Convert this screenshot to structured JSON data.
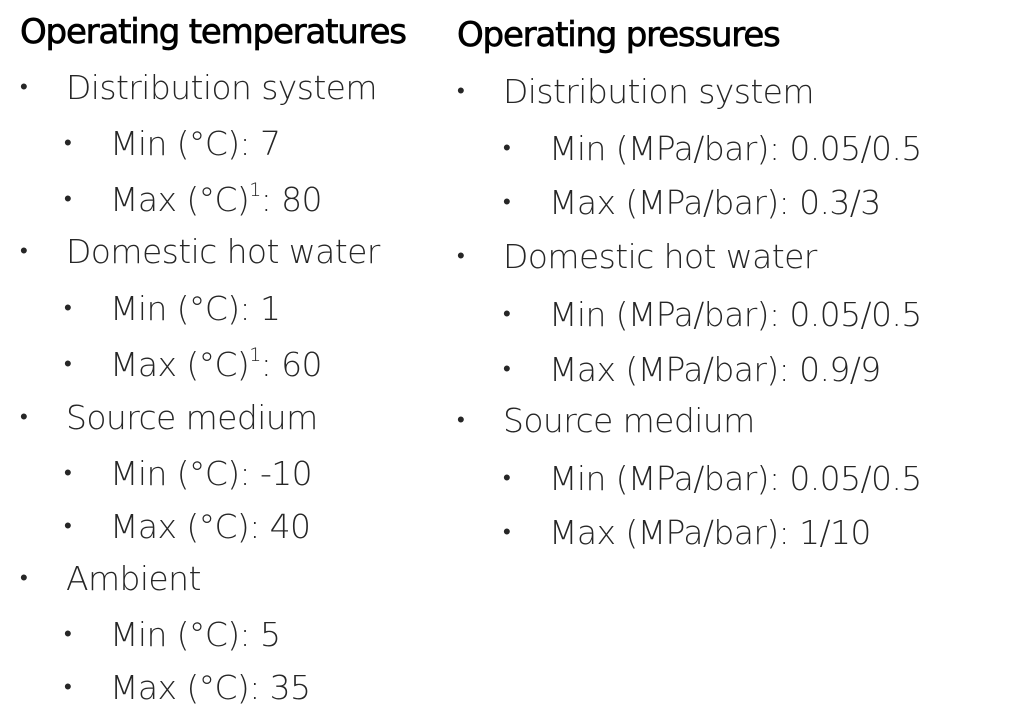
{
  "operating_temperatures": {
    "title": "Operating temperatures",
    "groups": [
      {
        "name": "Distribution system",
        "items": [
          {
            "label": "Min (°C)",
            "sup": "",
            "value": "7"
          },
          {
            "label": "Max (°C)",
            "sup": "1",
            "value": "80"
          }
        ]
      },
      {
        "name": "Domestic hot water",
        "items": [
          {
            "label": "Min (°C)",
            "sup": "",
            "value": "1"
          },
          {
            "label": "Max (°C)",
            "sup": "1",
            "value": "60"
          }
        ]
      },
      {
        "name": "Source medium",
        "items": [
          {
            "label": "Min (°C)",
            "sup": "",
            "value": "-10"
          },
          {
            "label": "Max (°C)",
            "sup": "",
            "value": "40"
          }
        ]
      },
      {
        "name": "Ambient",
        "items": [
          {
            "label": "Min (°C)",
            "sup": "",
            "value": "5"
          },
          {
            "label": "Max (°C)",
            "sup": "",
            "value": "35"
          }
        ]
      }
    ]
  },
  "operating_pressures": {
    "title": "Operating pressures",
    "groups": [
      {
        "name": "Distribution system",
        "items": [
          {
            "label": "Min (MPa/bar)",
            "sup": "",
            "value": "0.05/0.5"
          },
          {
            "label": "Max (MPa/bar)",
            "sup": "",
            "value": "0.3/3"
          }
        ]
      },
      {
        "name": "Domestic hot water",
        "items": [
          {
            "label": "Min (MPa/bar)",
            "sup": "",
            "value": "0.05/0.5"
          },
          {
            "label": "Max (MPa/bar)",
            "sup": "",
            "value": "0.9/9"
          }
        ]
      },
      {
        "name": "Source medium",
        "items": [
          {
            "label": "Min (MPa/bar)",
            "sup": "",
            "value": "0.05/0.5"
          },
          {
            "label": "Max (MPa/bar)",
            "sup": "",
            "value": "1/10"
          }
        ]
      }
    ]
  },
  "bullet_glyph": "•",
  "text_color": "#262626",
  "heading_color": "#000000"
}
